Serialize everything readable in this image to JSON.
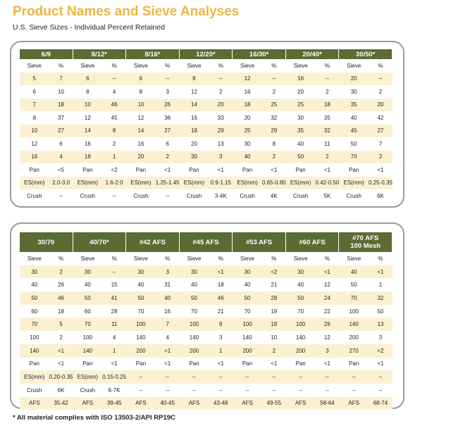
{
  "title": "Product Names and Sieve Analyses",
  "subtitle": "U.S. Sieve Sizes - Individual Percent Retained",
  "footnote": "* All material complies with ISO 13503-2/API RP19C",
  "colors": {
    "title": "#eeb540",
    "header": "#5c6b32",
    "shade": "#fbf1d2"
  },
  "table1": [
    {
      "name": "6/9",
      "rows": [
        [
          "Sieve",
          "%"
        ],
        [
          "5",
          "7"
        ],
        [
          "6",
          "10"
        ],
        [
          "7",
          "18"
        ],
        [
          "8",
          "37"
        ],
        [
          "10",
          "27"
        ],
        [
          "12",
          "6"
        ],
        [
          "16",
          "4"
        ],
        [
          "Pan",
          "<5"
        ],
        [
          "ES(mm)",
          "2.0-3.0"
        ],
        [
          "Crush",
          "--"
        ]
      ]
    },
    {
      "name": "8/12*",
      "rows": [
        [
          "Sieve",
          "%"
        ],
        [
          "6",
          "--"
        ],
        [
          "8",
          "4"
        ],
        [
          "10",
          "46"
        ],
        [
          "12",
          "45"
        ],
        [
          "14",
          "8"
        ],
        [
          "16",
          "2"
        ],
        [
          "18",
          "1"
        ],
        [
          "Pan",
          "<2"
        ],
        [
          "ES(mm)",
          "1.6-2.0"
        ],
        [
          "Crush",
          "--"
        ]
      ]
    },
    {
      "name": "8/16*",
      "rows": [
        [
          "Sieve",
          "%"
        ],
        [
          "6",
          "--"
        ],
        [
          "8",
          "3"
        ],
        [
          "10",
          "26"
        ],
        [
          "12",
          "36"
        ],
        [
          "14",
          "27"
        ],
        [
          "16",
          "6"
        ],
        [
          "20",
          "2"
        ],
        [
          "Pan",
          "<1"
        ],
        [
          "ES(mm)",
          "1.25-1.45"
        ],
        [
          "Crush",
          "--"
        ]
      ]
    },
    {
      "name": "12/20*",
      "rows": [
        [
          "Sieve",
          "%"
        ],
        [
          "8",
          "--"
        ],
        [
          "12",
          "2"
        ],
        [
          "14",
          "20"
        ],
        [
          "16",
          "33"
        ],
        [
          "18",
          "29"
        ],
        [
          "20",
          "13"
        ],
        [
          "30",
          "3"
        ],
        [
          "Pan",
          "<1"
        ],
        [
          "ES(mm)",
          "0.9-1.15"
        ],
        [
          "Crush",
          "3-4K"
        ]
      ]
    },
    {
      "name": "16/30*",
      "rows": [
        [
          "Sieve",
          "%"
        ],
        [
          "12",
          "--"
        ],
        [
          "16",
          "2"
        ],
        [
          "18",
          "25"
        ],
        [
          "20",
          "32"
        ],
        [
          "25",
          "29"
        ],
        [
          "30",
          "8"
        ],
        [
          "40",
          "2"
        ],
        [
          "Pan",
          "<1"
        ],
        [
          "ES(mm)",
          "0.65-0.80"
        ],
        [
          "Crush",
          "4K"
        ]
      ]
    },
    {
      "name": "20/40*",
      "rows": [
        [
          "Sieve",
          "%"
        ],
        [
          "16",
          "--"
        ],
        [
          "20",
          "2"
        ],
        [
          "25",
          "18"
        ],
        [
          "30",
          "35"
        ],
        [
          "35",
          "32"
        ],
        [
          "40",
          "11"
        ],
        [
          "50",
          "2"
        ],
        [
          "Pan",
          "<1"
        ],
        [
          "ES(mm)",
          "0.42-0.50"
        ],
        [
          "Crush",
          "5K"
        ]
      ]
    },
    {
      "name": "30/50*",
      "rows": [
        [
          "Sieve",
          "%"
        ],
        [
          "20",
          "--"
        ],
        [
          "30",
          "2"
        ],
        [
          "35",
          "20"
        ],
        [
          "40",
          "42"
        ],
        [
          "45",
          "27"
        ],
        [
          "50",
          "7"
        ],
        [
          "70",
          "2"
        ],
        [
          "Pan",
          "<1"
        ],
        [
          "ES(mm)",
          "0.25-0.35"
        ],
        [
          "Crush",
          "6K"
        ]
      ]
    }
  ],
  "table2": [
    {
      "name": "30/70",
      "rows": [
        [
          "Sieve",
          "%"
        ],
        [
          "30",
          "2"
        ],
        [
          "40",
          "26"
        ],
        [
          "50",
          "46"
        ],
        [
          "60",
          "18"
        ],
        [
          "70",
          "5"
        ],
        [
          "100",
          "2"
        ],
        [
          "140",
          "<1"
        ],
        [
          "Pan",
          "<1"
        ],
        [
          "ES(mm)",
          "0.20-0.35"
        ],
        [
          "Crush",
          "6K"
        ],
        [
          "AFS",
          "35-42"
        ]
      ]
    },
    {
      "name": "40/70*",
      "rows": [
        [
          "Sieve",
          "%"
        ],
        [
          "30",
          "--"
        ],
        [
          "40",
          "15"
        ],
        [
          "50",
          "41"
        ],
        [
          "60",
          "28"
        ],
        [
          "70",
          "11"
        ],
        [
          "100",
          "4"
        ],
        [
          "140",
          "1"
        ],
        [
          "Pan",
          "<1"
        ],
        [
          "ES(mm)",
          "0.15-0.25"
        ],
        [
          "Crush",
          "6-7K"
        ],
        [
          "AFS",
          "39-45"
        ]
      ]
    },
    {
      "name": "#42 AFS",
      "rows": [
        [
          "Sieve",
          "%"
        ],
        [
          "30",
          "3"
        ],
        [
          "40",
          "31"
        ],
        [
          "50",
          "40"
        ],
        [
          "70",
          "16"
        ],
        [
          "100",
          "7"
        ],
        [
          "140",
          "4"
        ],
        [
          "200",
          "<1"
        ],
        [
          "Pan",
          "<1"
        ],
        [
          "--",
          "--"
        ],
        [
          "--",
          "--"
        ],
        [
          "AFS",
          "40-45"
        ]
      ]
    },
    {
      "name": "#45 AFS",
      "rows": [
        [
          "Sieve",
          "%"
        ],
        [
          "30",
          "<1"
        ],
        [
          "40",
          "18"
        ],
        [
          "50",
          "46"
        ],
        [
          "70",
          "21"
        ],
        [
          "100",
          "9"
        ],
        [
          "140",
          "3"
        ],
        [
          "200",
          "1"
        ],
        [
          "Pan",
          "<1"
        ],
        [
          "--",
          "--"
        ],
        [
          "--",
          "--"
        ],
        [
          "AFS",
          "43-48"
        ]
      ]
    },
    {
      "name": "#53 AFS",
      "rows": [
        [
          "Sieve",
          "%"
        ],
        [
          "30",
          "<2"
        ],
        [
          "40",
          "21"
        ],
        [
          "50",
          "28"
        ],
        [
          "70",
          "19"
        ],
        [
          "100",
          "18"
        ],
        [
          "140",
          "10"
        ],
        [
          "200",
          "2"
        ],
        [
          "Pan",
          "<1"
        ],
        [
          "--",
          "--"
        ],
        [
          "--",
          "--"
        ],
        [
          "AFS",
          "49-55"
        ]
      ]
    },
    {
      "name": "#60 AFS",
      "rows": [
        [
          "Sieve",
          "%"
        ],
        [
          "30",
          "<1"
        ],
        [
          "40",
          "12"
        ],
        [
          "50",
          "24"
        ],
        [
          "70",
          "22"
        ],
        [
          "100",
          "26"
        ],
        [
          "140",
          "12"
        ],
        [
          "200",
          "3"
        ],
        [
          "Pan",
          "<1"
        ],
        [
          "--",
          "--"
        ],
        [
          "--",
          "--"
        ],
        [
          "AFS",
          "58-64"
        ]
      ]
    },
    {
      "name": "#70 AFS\n100 Mesh",
      "rows": [
        [
          "Sieve",
          "%"
        ],
        [
          "40",
          "<1"
        ],
        [
          "50",
          "1"
        ],
        [
          "70",
          "32"
        ],
        [
          "100",
          "50"
        ],
        [
          "140",
          "13"
        ],
        [
          "200",
          "3"
        ],
        [
          "270",
          "<2"
        ],
        [
          "Pan",
          "<1"
        ],
        [
          "--",
          "--"
        ],
        [
          "--",
          "--"
        ],
        [
          "AFS",
          "68-74"
        ]
      ]
    }
  ]
}
